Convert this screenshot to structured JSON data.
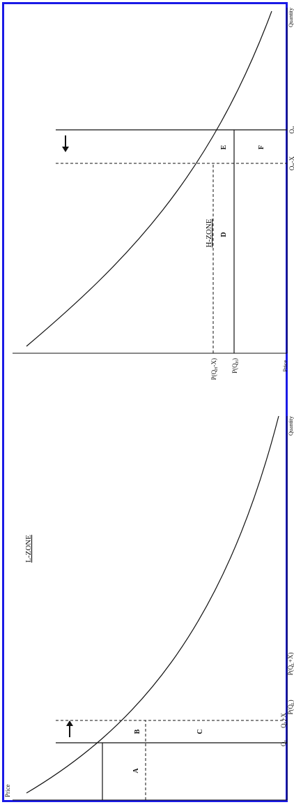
{
  "colors": {
    "border": "#1a1ae6",
    "line": "#111111"
  },
  "lzone": {
    "title": "L-ZONE",
    "price_axis": "Price",
    "quantity_axis": "Quantity",
    "price_ql": "P(Q",
    "price_ql_sub": "L",
    "price_ql_close": ")",
    "price_qlx": "P(Q",
    "price_qlx_sub": "L",
    "price_qlx_close": "+X)",
    "q_l": "Q",
    "q_l_sub": "L",
    "q_lx": "Q",
    "q_lx_sub": "L",
    "q_lx_tail": "+X",
    "area_a": "A",
    "area_b": "B",
    "area_c": "C"
  },
  "hzone": {
    "title": "H-ZONE",
    "price_axis": "Price",
    "quantity_axis": "Quantity",
    "price_qhx": "P(Q",
    "price_qhx_sub": "H",
    "price_qhx_close": "-X)",
    "price_qh": "P(Q",
    "price_qh_sub": "H",
    "price_qh_close": ")",
    "q_hx": "Q",
    "q_hx_sub": "H",
    "q_hx_tail": "-X",
    "q_h": "Q",
    "q_h_sub": "H",
    "area_d": "D",
    "area_e": "E",
    "area_f": "F"
  }
}
